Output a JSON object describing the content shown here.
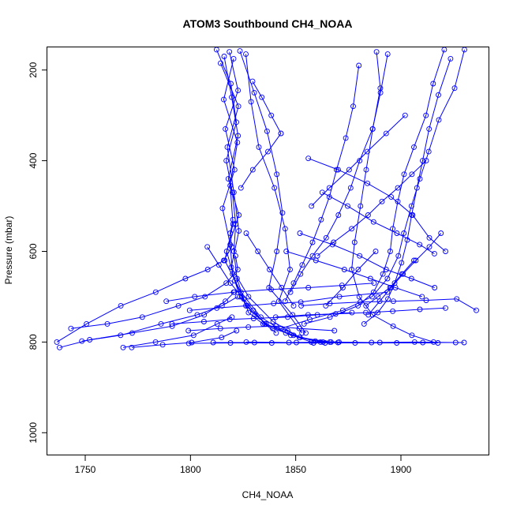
{
  "chart_data": {
    "type": "scatter",
    "title": "ATOM3 Southbound CH4_NOAA",
    "xlabel": "CH4_NOAA",
    "ylabel": "Pressure (mbar)",
    "xlim": [
      1732,
      1942
    ],
    "ylim": [
      1050,
      150
    ],
    "y_reversed": true,
    "xticks": [
      1750,
      1800,
      1850,
      1900
    ],
    "yticks": [
      200,
      400,
      600,
      800,
      1000
    ],
    "grid": false,
    "legend": "none",
    "color": "#0000ff",
    "series": [
      {
        "x": [
          1812.4,
          1819.2,
          1821.8,
          1817.0,
          1819.9,
          1821.5,
          1820.6,
          1822.1,
          1825.3,
          1827.6,
          1834.5,
          1846.2,
          1851.8,
          1863.0
        ],
        "y": [
          155,
          230,
          315,
          400,
          470,
          540,
          600,
          660,
          705,
          735,
          760,
          775,
          790,
          800
        ]
      },
      {
        "x": [
          1818.5,
          1822.6,
          1816.6,
          1821.0,
          1815.2,
          1818.9,
          1820.0,
          1823.5,
          1830.7,
          1839.1,
          1849.0,
          1861.8
        ],
        "y": [
          160,
          245,
          330,
          420,
          505,
          585,
          650,
          700,
          740,
          770,
          785,
          800
        ]
      },
      {
        "x": [
          1816.0,
          1819.6,
          1822.6,
          1818.0,
          1823.0,
          1817.2,
          1821.1,
          1826.3,
          1836.0,
          1847.7,
          1859.3,
          1870.6
        ],
        "y": [
          170,
          260,
          345,
          440,
          520,
          600,
          665,
          720,
          760,
          785,
          798,
          800
        ]
      },
      {
        "x": [
          1820.5,
          1815.8,
          1822.3,
          1818.9,
          1820.2,
          1816.3,
          1824.0,
          1833.4,
          1845.3,
          1857.4,
          1864.0
        ],
        "y": [
          175,
          265,
          360,
          455,
          540,
          620,
          690,
          745,
          780,
          800,
          802
        ]
      },
      {
        "x": [
          1814.3,
          1822.8,
          1817.5,
          1820.6,
          1823.0,
          1819.4,
          1827.6,
          1839.3,
          1852.0,
          1866.2
        ],
        "y": [
          185,
          280,
          370,
          470,
          555,
          635,
          700,
          755,
          790,
          800
        ]
      },
      {
        "x": [
          1823.5,
          1830.3,
          1836.4,
          1841.0,
          1843.7,
          1841.0,
          1837.3,
          1848.5,
          1854.8
        ],
        "y": [
          158,
          250,
          335,
          430,
          515,
          600,
          680,
          740,
          780
        ]
      },
      {
        "x": [
          1826.3,
          1828.8,
          1832.5,
          1839.9,
          1845.0,
          1847.3,
          1842.0,
          1853.0
        ],
        "y": [
          165,
          270,
          370,
          460,
          550,
          640,
          710,
          780
        ]
      },
      {
        "x": [
          1888.4,
          1890.2,
          1886.6,
          1883.5,
          1880.8,
          1878.0,
          1876.6,
          1880.2,
          1886.5,
          1896.3,
          1905.2,
          1915.5
        ],
        "y": [
          160,
          240,
          330,
          420,
          500,
          580,
          640,
          700,
          740,
          765,
          785,
          800
        ]
      },
      {
        "x": [
          1920.6,
          1915.3,
          1911.9,
          1906.2,
          1901.5,
          1898.5,
          1896.1,
          1894.9,
          1891.4,
          1887.0,
          1879.6,
          1866.3,
          1854.0
        ],
        "y": [
          155,
          230,
          300,
          370,
          430,
          490,
          550,
          600,
          650,
          690,
          720,
          745,
          760
        ]
      },
      {
        "x": [
          1930.2,
          1925.5,
          1918.0,
          1913.2,
          1909.0,
          1905.0,
          1901.4,
          1898.8,
          1893.6,
          1886.3,
          1872.4,
          1856.7,
          1843.1
        ],
        "y": [
          155,
          240,
          310,
          380,
          440,
          500,
          560,
          610,
          660,
          700,
          730,
          750,
          770
        ]
      },
      {
        "x": [
          1923.6,
          1917.8,
          1913.4,
          1910.3,
          1907.6,
          1905.1,
          1903.0,
          1900.3,
          1897.0,
          1893.8,
          1889.0,
          1882.5
        ],
        "y": [
          175,
          255,
          330,
          400,
          460,
          520,
          575,
          625,
          670,
          705,
          735,
          760
        ]
      },
      {
        "x": [
          1893.7,
          1890.3,
          1886.5,
          1880.4,
          1876.1,
          1870.3,
          1864.5,
          1858.0,
          1852.3,
          1847.5
        ],
        "y": [
          165,
          250,
          330,
          400,
          460,
          520,
          570,
          610,
          650,
          690
        ]
      },
      {
        "x": [
          1880.0,
          1877.3,
          1873.8,
          1869.4,
          1866.0,
          1862.1,
          1858.0,
          1853.1,
          1849.0,
          1845.0
        ],
        "y": [
          190,
          280,
          350,
          420,
          480,
          530,
          580,
          630,
          670,
          710
        ]
      },
      {
        "x": [
          1736.5,
          1750.6,
          1766.9,
          1783.5,
          1797.6,
          1808.2,
          1815.8,
          1819.6,
          1818.9,
          1820.2
        ],
        "y": [
          800,
          760,
          720,
          690,
          660,
          640,
          620,
          590,
          560,
          530
        ]
      },
      {
        "x": [
          1743.2,
          1760.5,
          1777.1,
          1794.3,
          1806.9,
          1817.0,
          1822.5,
          1821.4
        ],
        "y": [
          770,
          760,
          745,
          720,
          700,
          670,
          640,
          610
        ]
      },
      {
        "x": [
          1737.8,
          1752.1,
          1772.3,
          1791.3,
          1806.5,
          1816.6,
          1820.8
        ],
        "y": [
          812,
          795,
          780,
          765,
          740,
          710,
          690
        ]
      },
      {
        "x": [
          1748.4,
          1766.8,
          1786.0,
          1803.2,
          1815.0,
          1822.4
        ],
        "y": [
          798,
          785,
          760,
          740,
          720,
          700
        ]
      },
      {
        "x": [
          1768.0,
          1783.4,
          1801.5,
          1812.7,
          1819.7
        ],
        "y": [
          812,
          800,
          785,
          760,
          745
        ]
      },
      {
        "x": [
          1772.1,
          1786.8,
          1800.6,
          1814.8,
          1821.9
        ],
        "y": [
          812,
          806,
          801,
          790,
          775
        ]
      },
      {
        "x": [
          1788.5,
          1802.0,
          1820.5,
          1838.3,
          1856.0,
          1872.0,
          1887.2
        ],
        "y": [
          710,
          700,
          690,
          684,
          680,
          675,
          670
        ]
      },
      {
        "x": [
          1799.6,
          1812.5,
          1827.1,
          1839.5,
          1852.4,
          1870.8,
          1893.6
        ],
        "y": [
          730,
          725,
          720,
          715,
          712,
          700,
          690
        ]
      },
      {
        "x": [
          1791.2,
          1806.4,
          1818.7,
          1830.0,
          1846.2,
          1860.3,
          1876.7
        ],
        "y": [
          760,
          755,
          750,
          748,
          745,
          740,
          735
        ]
      },
      {
        "x": [
          1799.0,
          1814.2,
          1827.5,
          1840.6,
          1851.7,
          1868.4
        ],
        "y": [
          775,
          770,
          767,
          765,
          770,
          775
        ]
      },
      {
        "x": [
          1840.5,
          1855.9,
          1869.0,
          1883.3,
          1896.1,
          1909.0,
          1921.2
        ],
        "y": [
          745,
          740,
          738,
          735,
          732,
          728,
          725
        ]
      },
      {
        "x": [
          1852.6,
          1866.2,
          1880.7,
          1896.4,
          1912.0,
          1926.5,
          1935.8
        ],
        "y": [
          720,
          715,
          712,
          710,
          708,
          705,
          730
        ]
      },
      {
        "x": [
          1810.8,
          1830.4,
          1850.3,
          1870.1,
          1890.0,
          1910.4,
          1930.0
        ],
        "y": [
          801,
          801,
          801,
          801,
          801,
          801,
          801
        ]
      },
      {
        "x": [
          1799.2,
          1819.0,
          1838.6,
          1858.5,
          1878.2,
          1898.0,
          1917.6
        ],
        "y": [
          803,
          802,
          802,
          802,
          802,
          802,
          802
        ]
      },
      {
        "x": [
          1826.5,
          1846.8,
          1866.8,
          1886.0,
          1906.5,
          1926.0
        ],
        "y": [
          800,
          801,
          800,
          801,
          800,
          801
        ]
      },
      {
        "x": [
          1856.0,
          1870.2,
          1884.1,
          1895.4,
          1905.6,
          1913.5,
          1921.2
        ],
        "y": [
          395,
          420,
          450,
          480,
          520,
          570,
          600
        ]
      },
      {
        "x": [
          1862.6,
          1874.7,
          1887.0,
          1898.1,
          1908.9,
          1915.9
        ],
        "y": [
          470,
          500,
          535,
          560,
          585,
          605
        ]
      },
      {
        "x": [
          1852.0,
          1867.5,
          1880.4,
          1893.0,
          1905.0,
          1916.0
        ],
        "y": [
          560,
          585,
          610,
          640,
          660,
          680
        ]
      },
      {
        "x": [
          1845.5,
          1859.6,
          1873.1,
          1885.5,
          1897.4,
          1910.0
        ],
        "y": [
          600,
          620,
          640,
          660,
          680,
          700
        ]
      },
      {
        "x": [
          1912.0,
          1905.2,
          1898.5,
          1891.0,
          1884.4,
          1876.6,
          1868.0,
          1860.3
        ],
        "y": [
          400,
          430,
          460,
          490,
          520,
          550,
          580,
          610
        ]
      },
      {
        "x": [
          1919.0,
          1913.5,
          1907.1,
          1901.0,
          1895.3,
          1889.9,
          1884.5
        ],
        "y": [
          560,
          590,
          620,
          650,
          680,
          710,
          740
        ]
      },
      {
        "x": [
          1902.0,
          1893.0,
          1884.0,
          1875.4,
          1866.0,
          1857.5
        ],
        "y": [
          300,
          340,
          380,
          420,
          460,
          500
        ]
      },
      {
        "x": [
          1888.0,
          1879.7,
          1872.4,
          1864.3
        ],
        "y": [
          600,
          640,
          680,
          720
        ]
      },
      {
        "x": [
          1906.2,
          1900.5,
          1894.8,
          1889.1,
          1883.4
        ],
        "y": [
          620,
          650,
          680,
          700,
          720
        ]
      },
      {
        "x": [
          1808.0,
          1813.5,
          1819.0,
          1824.4,
          1829.8,
          1835.3,
          1840.7
        ],
        "y": [
          590,
          630,
          670,
          700,
          730,
          760,
          780
        ]
      },
      {
        "x": [
          1826.5,
          1832.0,
          1837.6,
          1843.3,
          1849.0
        ],
        "y": [
          560,
          600,
          640,
          680,
          720
        ]
      },
      {
        "x": [
          1843.0,
          1836.8,
          1829.6,
          1824.0
        ],
        "y": [
          340,
          380,
          420,
          460
        ]
      },
      {
        "x": [
          1829.5,
          1833.9,
          1838.4,
          1843.0
        ],
        "y": [
          225,
          260,
          300,
          340
        ]
      }
    ]
  }
}
